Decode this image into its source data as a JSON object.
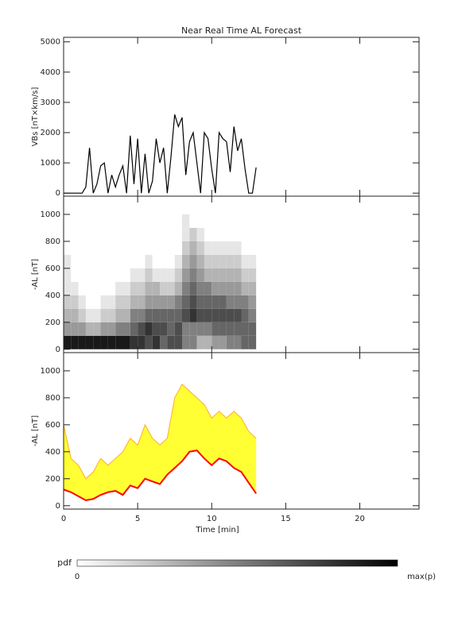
{
  "chart_data": [
    {
      "type": "line",
      "title": "Near Real Time AL Forecast",
      "ylabel": "VBs [nT×km/s]",
      "xlim": [
        0,
        24
      ],
      "xticks": [
        0,
        5,
        10,
        15,
        20
      ],
      "ylim": [
        -100,
        5150
      ],
      "yticks": [
        0,
        1000,
        2000,
        3000,
        4000,
        5000
      ],
      "x": [
        0,
        0.25,
        0.5,
        0.75,
        1,
        1.25,
        1.5,
        1.75,
        2,
        2.25,
        2.5,
        2.75,
        3,
        3.25,
        3.5,
        3.75,
        4,
        4.25,
        4.5,
        4.75,
        5,
        5.25,
        5.5,
        5.75,
        6,
        6.25,
        6.5,
        6.75,
        7,
        7.25,
        7.5,
        7.75,
        8,
        8.25,
        8.5,
        8.75,
        9,
        9.25,
        9.5,
        9.75,
        10,
        10.25,
        10.5,
        10.75,
        11,
        11.25,
        11.5,
        11.75,
        12,
        12.25,
        12.5,
        12.75,
        13
      ],
      "series": [
        {
          "color": "#000000",
          "values": [
            0,
            0,
            0,
            0,
            0,
            0,
            200,
            1500,
            0,
            300,
            900,
            1000,
            0,
            600,
            200,
            600,
            900,
            0,
            1900,
            300,
            1800,
            0,
            1300,
            0,
            400,
            1800,
            1000,
            1500,
            0,
            1200,
            2600,
            2200,
            2500,
            600,
            1700,
            2000,
            1000,
            0,
            2000,
            1800,
            800,
            0,
            2000,
            1800,
            1700,
            700,
            2200,
            1400,
            1800,
            800,
            0,
            0,
            850
          ]
        }
      ]
    },
    {
      "type": "heatmap",
      "ylabel": "-AL [nT]",
      "xlim": [
        0,
        24
      ],
      "xticks": [
        0,
        5,
        10,
        15,
        20
      ],
      "ylim": [
        -25,
        1135
      ],
      "yticks": [
        0,
        200,
        400,
        600,
        800,
        1000
      ],
      "x_edges": [
        0,
        0.5,
        1,
        1.5,
        2,
        2.5,
        3,
        3.5,
        4,
        4.5,
        5,
        5.5,
        6,
        6.5,
        7,
        7.5,
        8,
        8.5,
        9,
        9.5,
        10,
        10.5,
        11,
        11.5,
        12,
        12.5,
        13
      ],
      "y_edges": [
        0,
        100,
        200,
        300,
        400,
        500,
        600,
        700,
        800,
        900,
        1000
      ],
      "values": [
        [
          0.9,
          0.9,
          0.9,
          0.9,
          0.9,
          0.9,
          0.9,
          0.9,
          0.9,
          0.8,
          0.8,
          0.7,
          0.8,
          0.6,
          0.7,
          0.7,
          0.5,
          0.5,
          0.3,
          0.3,
          0.4,
          0.4,
          0.5,
          0.5,
          0.6,
          0.6
        ],
        [
          0.4,
          0.4,
          0.4,
          0.3,
          0.3,
          0.4,
          0.4,
          0.5,
          0.5,
          0.6,
          0.7,
          0.8,
          0.7,
          0.7,
          0.6,
          0.7,
          0.5,
          0.5,
          0.5,
          0.5,
          0.6,
          0.6,
          0.6,
          0.6,
          0.6,
          0.6
        ],
        [
          0.3,
          0.3,
          0.2,
          0.1,
          0.1,
          0.2,
          0.2,
          0.3,
          0.3,
          0.5,
          0.5,
          0.6,
          0.6,
          0.6,
          0.6,
          0.6,
          0.7,
          0.8,
          0.7,
          0.7,
          0.7,
          0.7,
          0.7,
          0.7,
          0.6,
          0.5
        ],
        [
          0.2,
          0.2,
          0.1,
          0,
          0,
          0.1,
          0.1,
          0.2,
          0.2,
          0.3,
          0.3,
          0.4,
          0.4,
          0.4,
          0.4,
          0.5,
          0.6,
          0.7,
          0.6,
          0.6,
          0.6,
          0.6,
          0.5,
          0.5,
          0.5,
          0.4
        ],
        [
          0.1,
          0.1,
          0,
          0,
          0,
          0,
          0,
          0.1,
          0.1,
          0.2,
          0.2,
          0.3,
          0.3,
          0.2,
          0.2,
          0.3,
          0.5,
          0.6,
          0.5,
          0.5,
          0.4,
          0.4,
          0.4,
          0.4,
          0.3,
          0.3
        ],
        [
          0.1,
          0,
          0,
          0,
          0,
          0,
          0,
          0,
          0,
          0.1,
          0.1,
          0.2,
          0.1,
          0.1,
          0.1,
          0.2,
          0.4,
          0.5,
          0.4,
          0.3,
          0.3,
          0.3,
          0.3,
          0.3,
          0.2,
          0.2
        ],
        [
          0.1,
          0,
          0,
          0,
          0,
          0,
          0,
          0,
          0,
          0,
          0,
          0.1,
          0,
          0,
          0,
          0.1,
          0.3,
          0.4,
          0.3,
          0.2,
          0.2,
          0.2,
          0.2,
          0.2,
          0.1,
          0.1
        ],
        [
          0,
          0,
          0,
          0,
          0,
          0,
          0,
          0,
          0,
          0,
          0,
          0,
          0,
          0,
          0,
          0,
          0.2,
          0.3,
          0.2,
          0.1,
          0.1,
          0.1,
          0.1,
          0.1,
          0,
          0
        ],
        [
          0,
          0,
          0,
          0,
          0,
          0,
          0,
          0,
          0,
          0,
          0,
          0,
          0,
          0,
          0,
          0,
          0.1,
          0.2,
          0.1,
          0,
          0,
          0,
          0,
          0,
          0,
          0
        ],
        [
          0,
          0,
          0,
          0,
          0,
          0,
          0,
          0,
          0,
          0,
          0,
          0,
          0,
          0,
          0,
          0,
          0.1,
          0,
          0,
          0,
          0,
          0,
          0,
          0,
          0,
          0
        ]
      ],
      "colorbar": {
        "label": "pdf",
        "min_label": "0",
        "max_label": "max(p)"
      }
    },
    {
      "type": "band",
      "ylabel": "-AL [nT]",
      "xlabel": "Time [min]",
      "xlim": [
        0,
        24
      ],
      "xticks": [
        0,
        5,
        10,
        15,
        20
      ],
      "ylim": [
        -25,
        1135
      ],
      "yticks": [
        0,
        200,
        400,
        600,
        800,
        1000
      ],
      "x": [
        0,
        0.5,
        1,
        1.5,
        2,
        2.5,
        3,
        3.5,
        4,
        4.5,
        5,
        5.5,
        6,
        6.5,
        7,
        7.5,
        8,
        8.5,
        9,
        9.5,
        10,
        10.5,
        11,
        11.5,
        12,
        12.5,
        13
      ],
      "fill_color": "#ffff33",
      "series": [
        {
          "color": "#ffaa33",
          "values": [
            600,
            350,
            300,
            200,
            250,
            350,
            300,
            350,
            400,
            500,
            450,
            600,
            500,
            450,
            500,
            800,
            900,
            850,
            800,
            750,
            650,
            700,
            650,
            700,
            650,
            550,
            500
          ]
        },
        {
          "color": "#ff0000",
          "values": [
            120,
            100,
            70,
            40,
            50,
            80,
            100,
            110,
            80,
            150,
            130,
            200,
            180,
            160,
            230,
            280,
            330,
            400,
            410,
            350,
            300,
            350,
            330,
            280,
            250,
            170,
            90
          ]
        }
      ]
    }
  ]
}
